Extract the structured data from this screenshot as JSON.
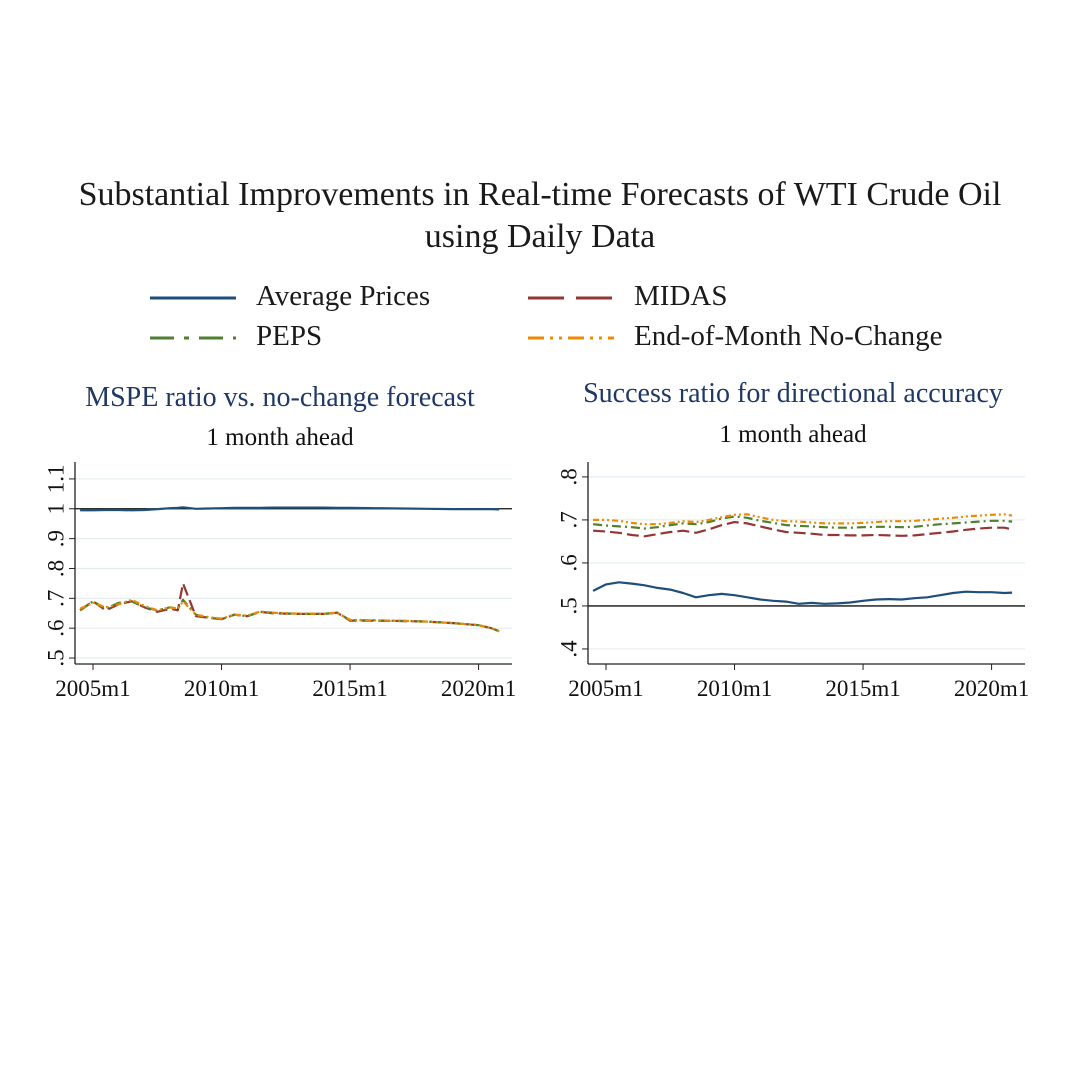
{
  "title_line1": "Substantial Improvements in Real-time Forecasts of WTI Crude Oil",
  "title_line2": "using Daily Data",
  "legend": [
    {
      "label": "Average Prices",
      "color": "#1f4e79",
      "dash": "solid"
    },
    {
      "label": "MIDAS",
      "color": "#943634",
      "dash": "longdash"
    },
    {
      "label": "PEPS",
      "color": "#4f7f2f",
      "dash": "dashdot"
    },
    {
      "label": "End-of-Month No-Change",
      "color": "#ed8a00",
      "dash": "dashdotdot"
    }
  ],
  "chart_data": [
    {
      "type": "line",
      "title": "MSPE ratio vs. no-change forecast",
      "subtitle": "1 month ahead",
      "x_ticks": [
        "2005m1",
        "2010m1",
        "2015m1",
        "2020m1"
      ],
      "y_ticks": [
        ".5",
        ".6",
        ".7",
        ".8",
        ".9",
        "1",
        "1.1"
      ],
      "ylim": [
        0.48,
        1.15
      ],
      "reference_line": 1.0,
      "grid": true,
      "x": [
        2004.5,
        2005,
        2005.5,
        2006,
        2006.5,
        2007,
        2007.5,
        2008,
        2008.3,
        2008.5,
        2009,
        2009.5,
        2010,
        2010.5,
        2011,
        2011.5,
        2012,
        2013,
        2014,
        2014.5,
        2015,
        2016,
        2017,
        2018,
        2019,
        2020,
        2020.5,
        2020.8
      ],
      "series": [
        {
          "name": "Average Prices",
          "values": [
            0.995,
            0.995,
            0.996,
            0.996,
            0.995,
            0.996,
            0.999,
            1.002,
            1.003,
            1.005,
            1.0,
            1.001,
            1.002,
            1.003,
            1.003,
            1.003,
            1.004,
            1.004,
            1.004,
            1.003,
            1.003,
            1.002,
            1.001,
            1.0,
            0.999,
            0.999,
            0.999,
            0.998
          ]
        },
        {
          "name": "MIDAS",
          "values": [
            0.66,
            0.69,
            0.66,
            0.68,
            0.69,
            0.67,
            0.655,
            0.665,
            0.66,
            0.75,
            0.64,
            0.635,
            0.63,
            0.645,
            0.64,
            0.655,
            0.65,
            0.648,
            0.648,
            0.652,
            0.625,
            0.625,
            0.624,
            0.622,
            0.617,
            0.61,
            0.6,
            0.59
          ]
        },
        {
          "name": "PEPS",
          "values": [
            0.66,
            0.69,
            0.665,
            0.685,
            0.69,
            0.67,
            0.66,
            0.67,
            0.665,
            0.695,
            0.645,
            0.635,
            0.63,
            0.645,
            0.64,
            0.655,
            0.652,
            0.648,
            0.648,
            0.652,
            0.627,
            0.626,
            0.624,
            0.622,
            0.617,
            0.61,
            0.6,
            0.59
          ]
        },
        {
          "name": "End-of-Month No-Change",
          "values": [
            0.665,
            0.685,
            0.67,
            0.68,
            0.695,
            0.675,
            0.66,
            0.67,
            0.665,
            0.69,
            0.645,
            0.637,
            0.632,
            0.645,
            0.642,
            0.656,
            0.652,
            0.649,
            0.649,
            0.652,
            0.628,
            0.626,
            0.625,
            0.622,
            0.617,
            0.61,
            0.6,
            0.59
          ]
        }
      ]
    },
    {
      "type": "line",
      "title": "Success ratio for directional accuracy",
      "subtitle": "1 month ahead",
      "x_ticks": [
        "2005m1",
        "2010m1",
        "2015m1",
        "2020m1"
      ],
      "y_ticks": [
        ".4",
        ".5",
        ".6",
        ".7",
        ".8"
      ],
      "ylim": [
        0.365,
        0.83
      ],
      "reference_line": 0.5,
      "grid": true,
      "x": [
        2004.5,
        2005,
        2005.5,
        2006,
        2006.5,
        2007,
        2007.5,
        2008,
        2008.5,
        2009,
        2009.5,
        2010,
        2010.5,
        2011,
        2011.5,
        2012,
        2012.5,
        2013,
        2013.5,
        2014,
        2014.5,
        2015,
        2015.5,
        2016,
        2016.5,
        2017,
        2017.5,
        2018,
        2018.5,
        2019,
        2019.5,
        2020,
        2020.5,
        2020.8
      ],
      "series": [
        {
          "name": "Average Prices",
          "values": [
            0.535,
            0.55,
            0.555,
            0.552,
            0.548,
            0.542,
            0.538,
            0.53,
            0.52,
            0.525,
            0.528,
            0.525,
            0.52,
            0.515,
            0.512,
            0.51,
            0.505,
            0.507,
            0.505,
            0.506,
            0.508,
            0.512,
            0.515,
            0.516,
            0.515,
            0.518,
            0.52,
            0.525,
            0.53,
            0.533,
            0.532,
            0.532,
            0.53,
            0.531
          ]
        },
        {
          "name": "MIDAS",
          "values": [
            0.675,
            0.673,
            0.67,
            0.665,
            0.662,
            0.667,
            0.672,
            0.675,
            0.67,
            0.678,
            0.688,
            0.695,
            0.692,
            0.685,
            0.678,
            0.672,
            0.67,
            0.668,
            0.665,
            0.665,
            0.664,
            0.664,
            0.665,
            0.664,
            0.663,
            0.664,
            0.667,
            0.67,
            0.673,
            0.677,
            0.68,
            0.682,
            0.682,
            0.678
          ]
        },
        {
          "name": "PEPS",
          "values": [
            0.69,
            0.687,
            0.685,
            0.683,
            0.68,
            0.683,
            0.688,
            0.692,
            0.69,
            0.695,
            0.703,
            0.708,
            0.705,
            0.698,
            0.693,
            0.688,
            0.686,
            0.685,
            0.683,
            0.682,
            0.682,
            0.683,
            0.684,
            0.684,
            0.683,
            0.684,
            0.687,
            0.69,
            0.692,
            0.694,
            0.696,
            0.698,
            0.698,
            0.696
          ]
        },
        {
          "name": "End-of-Month No-Change",
          "values": [
            0.7,
            0.7,
            0.698,
            0.693,
            0.69,
            0.69,
            0.693,
            0.697,
            0.695,
            0.7,
            0.706,
            0.712,
            0.713,
            0.706,
            0.7,
            0.697,
            0.696,
            0.694,
            0.692,
            0.692,
            0.692,
            0.693,
            0.695,
            0.697,
            0.697,
            0.698,
            0.7,
            0.703,
            0.705,
            0.708,
            0.71,
            0.712,
            0.713,
            0.71
          ]
        }
      ]
    }
  ]
}
